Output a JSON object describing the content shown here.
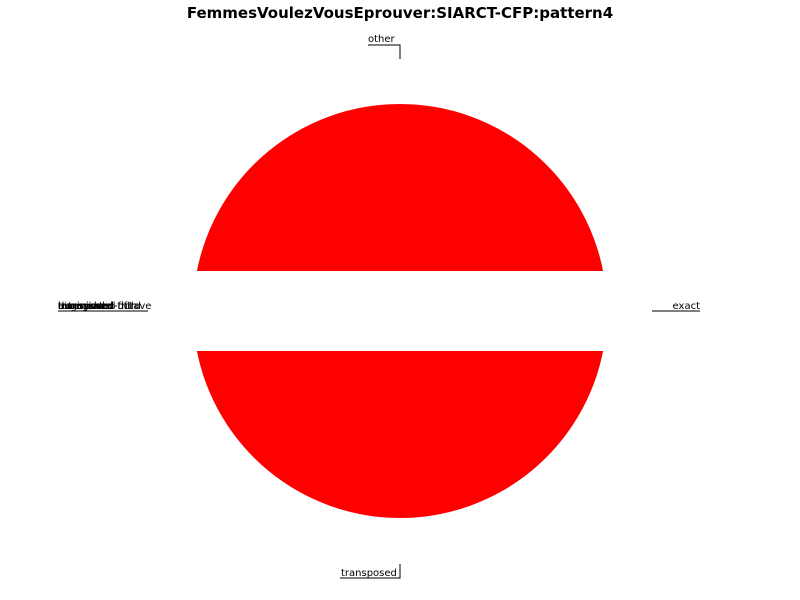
{
  "chart_data": {
    "type": "pie",
    "title": "FemmesVoulezVousEprouver:SIARCT-CFP:pattern4",
    "slices": [
      {
        "label": "other",
        "value": 0.5,
        "color": "#ff0000"
      },
      {
        "label": "transposed",
        "value": 0.5,
        "color": "#ff0000"
      },
      {
        "label": "exact",
        "value": 0,
        "color": "#ff0000"
      },
      {
        "label": "transposed-fifth",
        "value": 0,
        "color": "#ff0000"
      },
      {
        "label": "transposed-octave",
        "value": 0,
        "color": "#ff0000"
      },
      {
        "label": "transposed-third",
        "value": 0,
        "color": "#ff0000"
      },
      {
        "label": "retrograde",
        "value": 0,
        "color": "#ff0000"
      },
      {
        "label": "inversion",
        "value": 0,
        "color": "#ff0000"
      },
      {
        "label": "augmented",
        "value": 0,
        "color": "#ff0000"
      },
      {
        "label": "diminished",
        "value": 0,
        "color": "#ff0000"
      }
    ],
    "legend": "none"
  }
}
